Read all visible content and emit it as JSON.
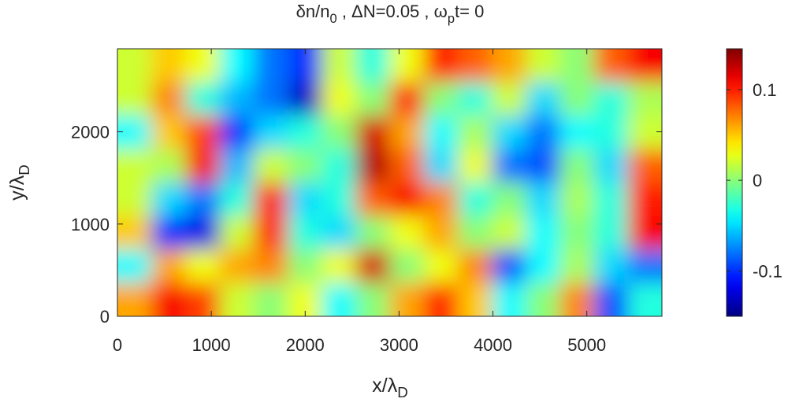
{
  "chart_data": {
    "type": "heatmap",
    "title": [
      {
        "text": "δn/n"
      },
      {
        "text": "0",
        "sub": true
      },
      {
        "text": " ,  ΔN=0.05 , ω"
      },
      {
        "text": "p",
        "sub": true
      },
      {
        "text": "t= 0"
      }
    ],
    "xlabel": [
      {
        "text": "x/λ"
      },
      {
        "text": "D",
        "sub": true
      }
    ],
    "ylabel": [
      {
        "text": "y/λ"
      },
      {
        "text": "D",
        "sub": true
      }
    ],
    "xlim": [
      0,
      5800
    ],
    "xticks": [
      0,
      1000,
      2000,
      3000,
      4000,
      5000
    ],
    "ylim": [
      0,
      2900
    ],
    "yticks": [
      0,
      1000,
      2000
    ],
    "clim": [
      -0.15,
      0.145
    ],
    "cticks": [
      -0.1,
      0,
      0.1
    ],
    "colormap": "jet",
    "x": [
      181.25,
      543.75,
      906.25,
      1268.75,
      1631.25,
      1993.75,
      2356.25,
      2718.75,
      3081.25,
      3443.75,
      3806.25,
      4168.75,
      4531.25,
      4893.75,
      5256.25,
      5618.75
    ],
    "y": [
      2718.75,
      2356.25,
      1993.75,
      1631.25,
      1268.75,
      906.25,
      543.75,
      181.25
    ],
    "z": [
      [
        0.02,
        0.05,
        0.03,
        -0.04,
        -0.08,
        -0.1,
        0.02,
        -0.03,
        0.03,
        0.1,
        0.08,
        0.06,
        0.02,
        0,
        0.08,
        0.11
      ],
      [
        0.02,
        0.07,
        -0.03,
        -0.06,
        -0.08,
        -0.13,
        0.03,
        0,
        0.1,
        0,
        -0.03,
        0.02,
        -0.05,
        0,
        -0.03,
        0.01
      ],
      [
        -0.04,
        0.05,
        0.09,
        -0.1,
        -0.05,
        -0.03,
        0,
        0.12,
        0.06,
        -0.04,
        0.01,
        -0.05,
        -0.08,
        -0.04,
        -0.03,
        0.02
      ],
      [
        0.02,
        0.01,
        0.11,
        -0.06,
        0.02,
        0,
        -0.03,
        0.13,
        0.08,
        -0.05,
        0.03,
        -0.08,
        -0.09,
        0,
        -0.05,
        0.08
      ],
      [
        0.02,
        -0.05,
        -0.08,
        -0.03,
        0.1,
        -0.05,
        -0.03,
        0.08,
        0.11,
        0.07,
        -0.03,
        0,
        -0.05,
        0.01,
        -0.03,
        0.1
      ],
      [
        0.05,
        -0.1,
        -0.12,
        0.02,
        0.1,
        -0.03,
        -0.05,
        0,
        0.03,
        0.06,
        0,
        0.02,
        -0.04,
        0,
        -0.03,
        0.11
      ],
      [
        -0.04,
        0.06,
        0.03,
        0.06,
        0.07,
        0,
        0.03,
        0.12,
        0,
        0.03,
        0.07,
        -0.09,
        -0.04,
        0.01,
        -0.05,
        -0.08
      ],
      [
        0.06,
        0.11,
        0.09,
        0.02,
        0,
        0.03,
        -0.04,
        0,
        0.06,
        0.1,
        0.05,
        -0.04,
        0,
        0.07,
        -0.09,
        -0.03
      ]
    ]
  }
}
